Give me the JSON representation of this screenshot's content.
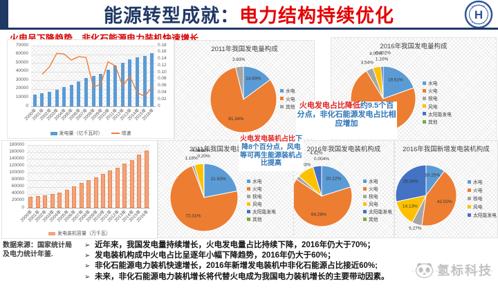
{
  "header": {
    "title_part1": "能源转型成就：",
    "title_part2": "电力结构持续优化",
    "subtitle": "火电呈下降趋势，非化石能源电力装机快速增长",
    "logo_text": "H"
  },
  "palette": [
    "#5B9BD5",
    "#ED7D31",
    "#A5A5A5",
    "#FFC000",
    "#4472C4",
    "#70AD47"
  ],
  "chart_data": [
    {
      "id": "gen-combo",
      "type": "bar",
      "categories": [
        "2000年",
        "2001年",
        "2002年",
        "2003年",
        "2004年",
        "2005年",
        "2006年",
        "2007年",
        "2008年",
        "2009年",
        "2010年",
        "2011年",
        "2012年",
        "2013年",
        "2014年",
        "2015年",
        "2016年"
      ],
      "series": [
        {
          "name": "发电量（亿千瓦时）",
          "kind": "bar",
          "color": "#5B9BD5",
          "values": [
            13500,
            14800,
            16500,
            19100,
            22000,
            25000,
            28600,
            32800,
            34700,
            37100,
            42100,
            47100,
            49900,
            54300,
            56500,
            58100,
            61400
          ]
        },
        {
          "name": "增速",
          "kind": "line",
          "color": "#ED7D31",
          "axis": "right",
          "values": [
            null,
            0.095,
            0.117,
            0.157,
            0.155,
            0.137,
            0.147,
            0.145,
            0.057,
            0.065,
            0.132,
            0.12,
            0.06,
            0.089,
            0.04,
            0.03,
            0.057
          ]
        }
      ],
      "y_left": {
        "min": 0,
        "max": 70000,
        "step": 10000
      },
      "y_right": {
        "min": 0,
        "max": 0.18,
        "step": 0.02
      },
      "grid": true,
      "legend_position": "bottom"
    },
    {
      "id": "gen-mix-2011",
      "type": "pie",
      "title": "2011年我国发电量构成",
      "slices": [
        {
          "name": "水电",
          "value": 14.83,
          "label": "14.83%"
        },
        {
          "name": "火电",
          "value": 81.34,
          "label": "81.34%"
        },
        {
          "name": "其他",
          "value": 3.83,
          "label": "3.83%"
        }
      ],
      "legend_position": "right"
    },
    {
      "id": "gen-mix-2016",
      "type": "pie",
      "title": "2016年我国发电量构成",
      "slices": [
        {
          "name": "水电",
          "value": 19.51,
          "label": "19.51%"
        },
        {
          "name": "火电",
          "value": 71.85,
          "label": "71.85%"
        },
        {
          "name": "核电",
          "value": 3.54,
          "label": "3.54%"
        },
        {
          "name": "风电",
          "value": 4.0,
          "label": "4.00%"
        },
        {
          "name": "太阳能发电",
          "value": 1.1,
          "label": "1.10%"
        },
        {
          "name": "其他",
          "value": 0.002,
          "label": "0.002%"
        }
      ],
      "legend_position": "right"
    },
    {
      "id": "cap-bar",
      "type": "bar",
      "categories": [
        "2000年",
        "2001年",
        "2002年",
        "2003年",
        "2004年",
        "2005年",
        "2006年",
        "2007年",
        "2008年",
        "2009年",
        "2010年",
        "2011年",
        "2012年",
        "2013年",
        "2014年",
        "2015年",
        "2016年"
      ],
      "series": [
        {
          "name": "发电装机容量（万千瓦）",
          "kind": "bar",
          "color": "#F2A479",
          "border": "#E8834E",
          "values": [
            31900,
            33800,
            35700,
            39100,
            44200,
            51700,
            62400,
            71800,
            79300,
            87400,
            96600,
            106300,
            114700,
            125800,
            137000,
            152100,
            164600
          ]
        }
      ],
      "y_left": {
        "min": 0,
        "max": 180000,
        "step": 20000
      },
      "grid": true,
      "legend_position": "bottom"
    },
    {
      "id": "cap-mix-2011",
      "type": "pie",
      "title": "2011年我国发电装机构成",
      "slices": [
        {
          "name": "水电",
          "value": 21.93,
          "label": "21.93%"
        },
        {
          "name": "火电",
          "value": 72.31,
          "label": "72.31%"
        },
        {
          "name": "核电",
          "value": 1.18,
          "label": "1.18%"
        },
        {
          "name": "风电",
          "value": 4.35,
          "label": "4.35%"
        },
        {
          "name": "太阳能发电",
          "value": 0.2,
          "label": "0.20%"
        },
        {
          "name": "其他",
          "value": 0.02,
          "label": "0.02%"
        }
      ],
      "legend_position": "right"
    },
    {
      "id": "cap-mix-2016",
      "type": "pie",
      "title": "2016年我国发电装机构成",
      "slices": [
        {
          "name": "水电",
          "value": 20.12,
          "label": "20.12%"
        },
        {
          "name": "火电",
          "value": 64.28,
          "label": "64.28%"
        },
        {
          "name": "核电",
          "value": 2.05,
          "label": ""
        },
        {
          "name": "风电",
          "value": 8.93,
          "label": "8.93%"
        },
        {
          "name": "太阳能发电",
          "value": 4.62,
          "label": "4.62%"
        },
        {
          "name": "其他",
          "value": 0.004,
          "label": "0.004%"
        }
      ],
      "legend_position": "right"
    },
    {
      "id": "new-cap-2016",
      "type": "pie",
      "title": "2016年我国新增发电装机构成",
      "slices": [
        {
          "name": "水电",
          "value": 10.25,
          "label": "10.25%"
        },
        {
          "name": "火电",
          "value": 42.02,
          "label": "42.02%"
        },
        {
          "name": "核电",
          "value": 5.27,
          "label": "5.27%"
        },
        {
          "name": "风电",
          "value": 14.13,
          "label": "14.13%"
        },
        {
          "name": "太阳能发电",
          "value": 28.34,
          "label": "28.34%"
        }
      ],
      "legend_position": "right"
    }
  ],
  "callouts": {
    "generation": {
      "red": "火电发电占比降低",
      "blue": "约9.5个百分点，非化石能源发电占比相应增加"
    },
    "capacity": {
      "red": "火电发电装机占比",
      "blue": "下降8个百分点，风电等可再生能源装机占比提高"
    }
  },
  "footer": {
    "source_line1": "数据来源：国家统计局",
    "source_line2": "及电力统计年鉴.",
    "bullet_marker": "➢",
    "bullets": [
      "近年来，我国发电量持续增长，火电发电量占比持续下降，2016年仍大于70%；",
      "发电装机构成中火电占比呈逐年小幅下降趋势，2016年仍大于60%；",
      "非化石能源电力装机快速增长，2016年新增发电装机中非化石能源占比接近60%;",
      "未来，非化石能源电力装机增长将代替火电成为我国电力装机增长的主要带动因素。"
    ],
    "watermark": "氢标科技"
  }
}
